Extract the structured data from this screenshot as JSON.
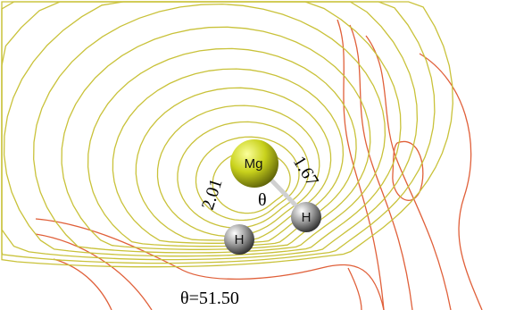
{
  "atoms": [
    {
      "label": "Mg"
    },
    {
      "label": "H"
    },
    {
      "label": "H"
    }
  ],
  "bond_labels": [
    "2.01",
    "1.67"
  ],
  "angle_label": "θ",
  "caption": "θ=51.50"
}
